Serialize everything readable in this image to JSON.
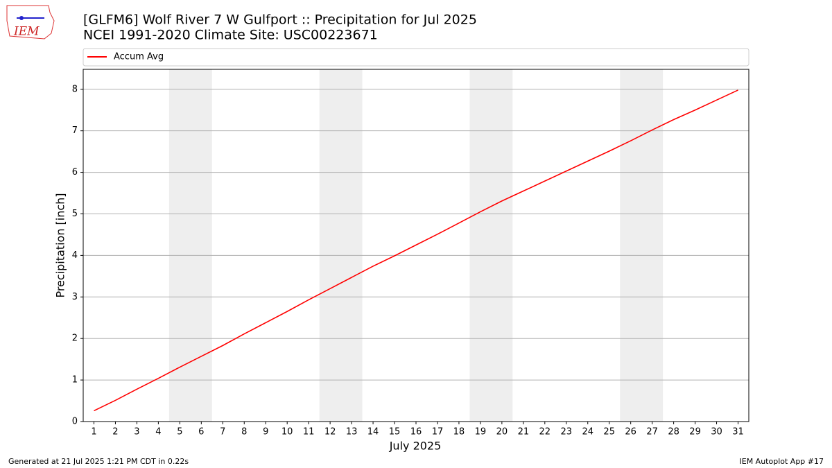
{
  "chart_data": {
    "type": "line",
    "title": "[GLFM6] Wolf River 7 W Gulfport :: Precipitation for Jul 2025",
    "subtitle": "NCEI 1991-2020 Climate Site: USC00223671",
    "x_label": "July 2025",
    "y_label": "Precipitation [inch]",
    "x": [
      1,
      2,
      3,
      4,
      5,
      6,
      7,
      8,
      9,
      10,
      11,
      12,
      13,
      14,
      15,
      16,
      17,
      18,
      19,
      20,
      21,
      22,
      23,
      24,
      25,
      26,
      27,
      28,
      29,
      30,
      31
    ],
    "series": [
      {
        "name": "Accum Avg",
        "color": "#ff0000",
        "values": [
          0.26,
          0.51,
          0.78,
          1.04,
          1.31,
          1.57,
          1.83,
          2.11,
          2.38,
          2.65,
          2.93,
          3.2,
          3.47,
          3.74,
          3.99,
          4.25,
          4.51,
          4.78,
          5.05,
          5.31,
          5.55,
          5.79,
          6.03,
          6.27,
          6.51,
          6.76,
          7.02,
          7.27,
          7.5,
          7.74,
          7.98
        ]
      }
    ],
    "xlim": [
      0.5,
      31.5
    ],
    "ylim": [
      0,
      8.48
    ],
    "xticks": [
      1,
      2,
      3,
      4,
      5,
      6,
      7,
      8,
      9,
      10,
      11,
      12,
      13,
      14,
      15,
      16,
      17,
      18,
      19,
      20,
      21,
      22,
      23,
      24,
      25,
      26,
      27,
      28,
      29,
      30,
      31
    ],
    "yticks": [
      0,
      1,
      2,
      3,
      4,
      5,
      6,
      7,
      8
    ],
    "shaded_spans": [
      [
        4.5,
        6.5
      ],
      [
        11.5,
        13.5
      ],
      [
        18.5,
        20.5
      ],
      [
        25.5,
        27.5
      ]
    ],
    "grid": true,
    "legend": "top"
  },
  "logo_text": "IEM",
  "footer_left": "Generated at 21 Jul 2025 1:21 PM CDT in 0.22s",
  "footer_right": "IEM Autoplot App #17"
}
